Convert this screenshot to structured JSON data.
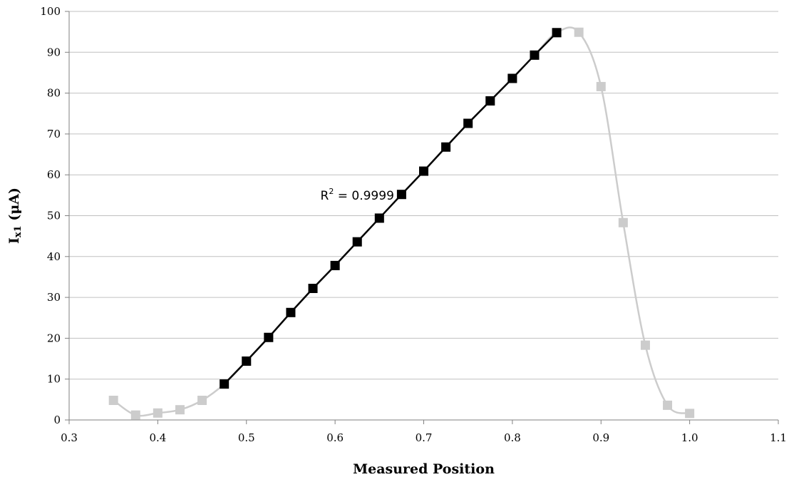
{
  "chart_data": {
    "type": "scatter",
    "xlabel": "Measured Position",
    "ylabel_main": "I",
    "ylabel_sub": "x1",
    "ylabel_rest": " (μA)",
    "xlim": [
      0.3,
      1.1
    ],
    "ylim": [
      0,
      100
    ],
    "x_ticks": [
      "0.3",
      "0.4",
      "0.5",
      "0.6",
      "0.7",
      "0.8",
      "0.9",
      "1.0",
      "1.1"
    ],
    "y_ticks": [
      "0",
      "10",
      "20",
      "30",
      "40",
      "50",
      "60",
      "70",
      "80",
      "90",
      "100"
    ],
    "grid": "horizontal",
    "annotation": {
      "base": "R",
      "sup": "2",
      "rest": " = 0.9999",
      "x": 0.625,
      "y": 55
    },
    "series": [
      {
        "color": "#cccccc",
        "marker": "square",
        "smooth": true,
        "x": [
          0.35,
          0.375,
          0.4,
          0.425,
          0.45,
          0.475,
          0.5,
          0.525,
          0.55,
          0.575,
          0.6,
          0.625,
          0.65,
          0.675,
          0.7,
          0.725,
          0.75,
          0.775,
          0.8,
          0.825,
          0.85,
          0.875,
          0.9,
          0.925,
          0.95,
          0.975,
          1.0
        ],
        "y": [
          4.8,
          1.2,
          1.7,
          2.5,
          4.8,
          8.8,
          14.4,
          20.2,
          26.3,
          32.2,
          37.8,
          43.6,
          49.4,
          55.2,
          60.9,
          66.8,
          72.6,
          78.1,
          83.6,
          89.3,
          94.8,
          94.9,
          81.6,
          48.3,
          18.3,
          3.6,
          1.6
        ]
      },
      {
        "color": "#000000",
        "marker": "square",
        "smooth": false,
        "x": [
          0.475,
          0.5,
          0.525,
          0.55,
          0.575,
          0.6,
          0.625,
          0.65,
          0.675,
          0.7,
          0.725,
          0.75,
          0.775,
          0.8,
          0.825,
          0.85
        ],
        "y": [
          8.8,
          14.4,
          20.2,
          26.3,
          32.2,
          37.8,
          43.6,
          49.4,
          55.2,
          60.9,
          66.8,
          72.6,
          78.1,
          83.6,
          89.3,
          94.8
        ]
      }
    ]
  }
}
